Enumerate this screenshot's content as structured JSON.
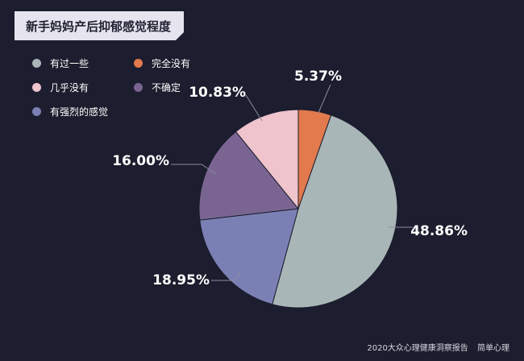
{
  "title": "新手妈妈产后抑郁感觉程度",
  "footer": {
    "source": "2020大众心理健康洞察报告",
    "brand": "简单心理"
  },
  "chart_data": {
    "type": "pie",
    "title": "新手妈妈产后抑郁感觉程度",
    "legend_position": "top-left",
    "series": [
      {
        "name": "有过一些",
        "value": 48.86,
        "label": "48.86%",
        "color": "#a9b6b7"
      },
      {
        "name": "有强烈的感觉",
        "value": 18.95,
        "label": "18.95%",
        "color": "#7b80b4"
      },
      {
        "name": "不确定",
        "value": 16.0,
        "label": "16.00%",
        "color": "#7a6592"
      },
      {
        "name": "几乎没有",
        "value": 10.83,
        "label": "10.83%",
        "color": "#efc4cc"
      },
      {
        "name": "完全没有",
        "value": 5.37,
        "label": "5.37%",
        "color": "#e27a4e"
      }
    ]
  }
}
